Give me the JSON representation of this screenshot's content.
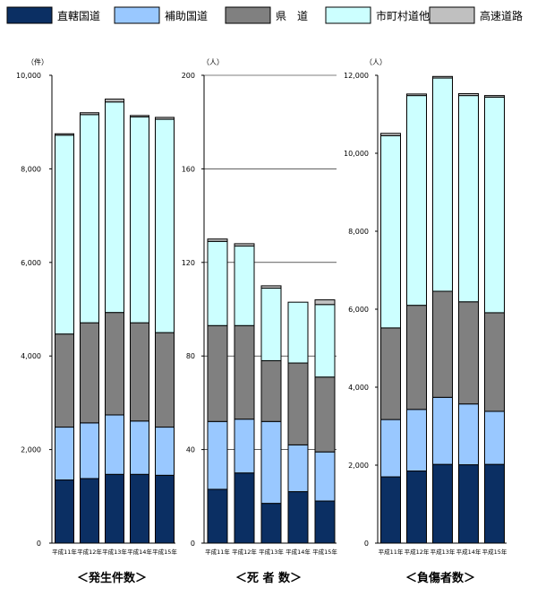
{
  "legend": [
    {
      "label": "直轄国道",
      "color": "#0b2f63"
    },
    {
      "label": "補助国道",
      "color": "#99c8ff"
    },
    {
      "label": "県　道",
      "color": "#808080"
    },
    {
      "label": "市町村道他",
      "color": "#ccffff"
    },
    {
      "label": "高速道路",
      "color": "#c0c0c0"
    }
  ],
  "chart_data": [
    {
      "type": "bar",
      "stacked": true,
      "title": "＜発生件数＞",
      "unit_label": "（件）",
      "categories": [
        "平成11年",
        "平成12年",
        "平成13年",
        "平成14年",
        "平成15年"
      ],
      "ylim": [
        0,
        10000
      ],
      "yticks": [
        "0",
        "2,000",
        "4,000",
        "6,000",
        "8,000",
        "10,000"
      ],
      "ytick_values": [
        0,
        2000,
        4000,
        6000,
        8000,
        10000
      ],
      "gridlines": false,
      "series": [
        {
          "name": "直轄国道",
          "values": [
            1350,
            1380,
            1470,
            1470,
            1450
          ]
        },
        {
          "name": "補助国道",
          "values": [
            1130,
            1190,
            1270,
            1140,
            1030
          ]
        },
        {
          "name": "県　道",
          "values": [
            1990,
            2140,
            2190,
            2100,
            2020
          ]
        },
        {
          "name": "市町村道他",
          "values": [
            4250,
            4450,
            4500,
            4400,
            4560
          ]
        },
        {
          "name": "高速道路",
          "values": [
            30,
            40,
            60,
            30,
            40
          ]
        }
      ]
    },
    {
      "type": "bar",
      "stacked": true,
      "title": "＜死 者 数＞",
      "unit_label": "（人）",
      "categories": [
        "平成11年",
        "平成12年",
        "平成13年",
        "平成14年",
        "平成15年"
      ],
      "ylim": [
        0,
        200
      ],
      "yticks": [
        "0",
        "40",
        "80",
        "120",
        "160",
        "200"
      ],
      "ytick_values": [
        0,
        40,
        80,
        120,
        160,
        200
      ],
      "gridlines": true,
      "series": [
        {
          "name": "直轄国道",
          "values": [
            23,
            30,
            17,
            22,
            18
          ]
        },
        {
          "name": "補助国道",
          "values": [
            29,
            23,
            35,
            20,
            21
          ]
        },
        {
          "name": "県　道",
          "values": [
            41,
            40,
            26,
            35,
            32
          ]
        },
        {
          "name": "市町村道他",
          "values": [
            36,
            34,
            31,
            26,
            31
          ]
        },
        {
          "name": "高速道路",
          "values": [
            1,
            1,
            1,
            0,
            2
          ]
        }
      ]
    },
    {
      "type": "bar",
      "stacked": true,
      "title": "＜負傷者数＞",
      "unit_label": "（人）",
      "categories": [
        "平成11年",
        "平成12年",
        "平成13年",
        "平成14年",
        "平成15年"
      ],
      "ylim": [
        0,
        12000
      ],
      "yticks": [
        "0",
        "2,000",
        "4,000",
        "6,000",
        "8,000",
        "10,000",
        "12,000"
      ],
      "ytick_values": [
        0,
        2000,
        4000,
        6000,
        8000,
        10000,
        12000
      ],
      "gridlines": false,
      "series": [
        {
          "name": "直轄国道",
          "values": [
            1700,
            1850,
            2020,
            2010,
            2020
          ]
        },
        {
          "name": "補助国道",
          "values": [
            1470,
            1580,
            1720,
            1560,
            1360
          ]
        },
        {
          "name": "県　道",
          "values": [
            2350,
            2670,
            2720,
            2620,
            2530
          ]
        },
        {
          "name": "市町村道他",
          "values": [
            4930,
            5380,
            5470,
            5290,
            5530
          ]
        },
        {
          "name": "高速道路",
          "values": [
            60,
            40,
            40,
            50,
            40
          ]
        }
      ]
    }
  ]
}
